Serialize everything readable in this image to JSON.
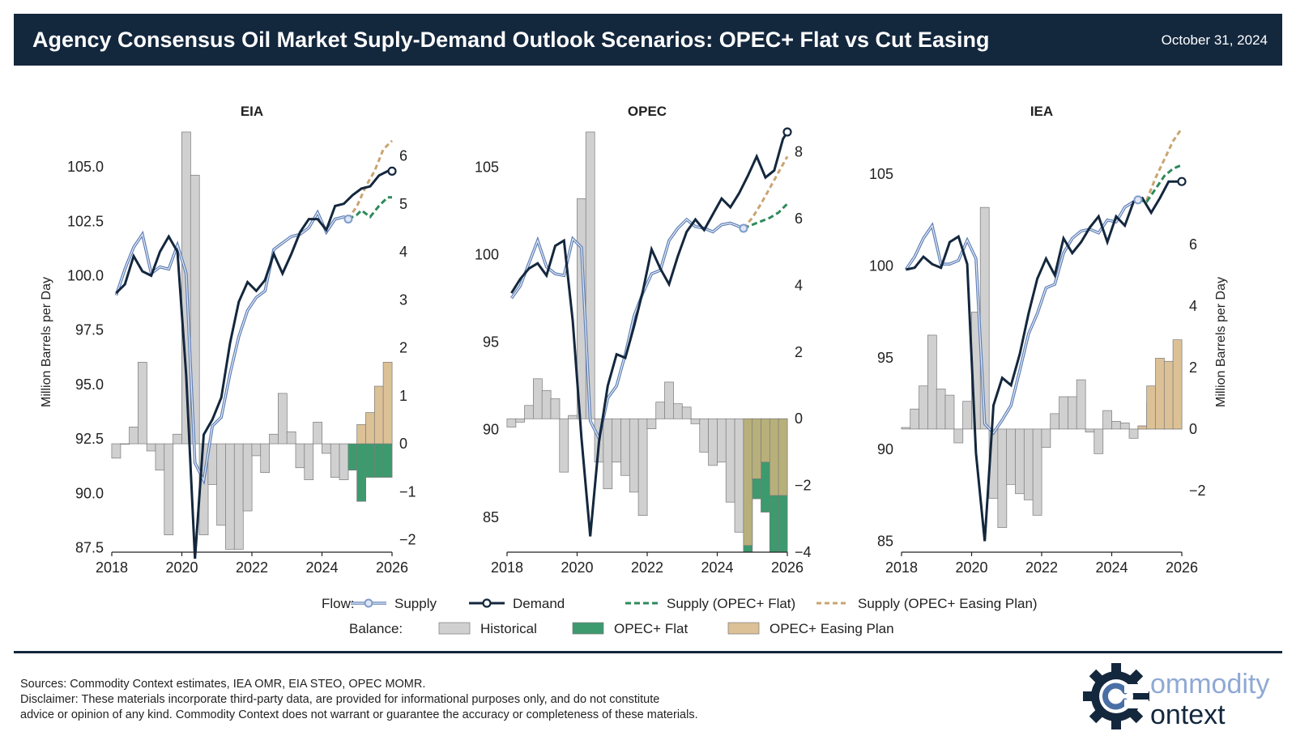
{
  "header": {
    "title": "Agency Consensus Oil Market Suply-Demand Outlook Scenarios: OPEC+ Flat vs Cut Easing",
    "date": "October 31, 2024"
  },
  "colors": {
    "header_bg": "#13273d",
    "supply": "#8fa9d4",
    "demand": "#13273d",
    "supply_flat": "#2e8a5c",
    "supply_easing": "#c9a472",
    "historical": "#d0d0d0",
    "opec_flat": "#3d9a6e",
    "opec_easing": "#dcc196"
  },
  "legend": {
    "flow_label": "Flow:",
    "balance_label": "Balance:",
    "supply": "Supply",
    "demand": "Demand",
    "supply_flat": "Supply (OPEC+ Flat)",
    "supply_easing": "Supply (OPEC+ Easing Plan)",
    "historical": "Historical",
    "opec_flat": "OPEC+ Flat",
    "opec_easing": "OPEC+ Easing Plan"
  },
  "footer": {
    "sources": "Sources: Commodity Context estimates, IEA OMR, EIA STEO, OPEC MOMR.",
    "disclaimer_1": "Disclaimer: These materials incorporate third-party data, are provided for informational purposes only, and do not constitute",
    "disclaimer_2": "advice or opinion of any kind. Commodity Context does not warrant or guarantee the accuracy or completeness of these materials."
  },
  "logo": {
    "line1": "ommodity",
    "line2": "ontext",
    "icon": "gear-c-icon"
  },
  "chart_data": [
    {
      "type": "line",
      "title": "EIA",
      "ylabel": "Million Barrels per Day",
      "ylabel_side": "left",
      "x_ticks": [
        "2018",
        "2020",
        "2022",
        "2024",
        "2026"
      ],
      "xlim": [
        2018,
        2026
      ],
      "left_ylim": [
        87.3,
        106.6
      ],
      "left_ticks": [
        "87.5",
        "90.0",
        "92.5",
        "95.0",
        "97.5",
        "100.0",
        "102.5",
        "105.0"
      ],
      "right_ylim": [
        -2.26,
        6.5
      ],
      "right_ticks": [
        "−2",
        "−1",
        "0",
        "1",
        "2",
        "3",
        "4",
        "5",
        "6"
      ],
      "supply": {
        "x": [
          2018.125,
          2018.375,
          2018.625,
          2018.875,
          2019.125,
          2019.375,
          2019.625,
          2019.875,
          2020.125,
          2020.375,
          2020.625,
          2020.875,
          2021.125,
          2021.375,
          2021.625,
          2021.875,
          2022.125,
          2022.375,
          2022.625,
          2022.875,
          2023.125,
          2023.375,
          2023.625,
          2023.875,
          2024.125,
          2024.375,
          2024.625,
          2024.75
        ],
        "y": [
          99.1,
          100.3,
          101.3,
          101.9,
          100.1,
          100.4,
          100.3,
          101.4,
          100.1,
          91.4,
          90.6,
          93.1,
          93.5,
          95.5,
          97.2,
          98.4,
          99.0,
          99.3,
          101.2,
          101.5,
          101.8,
          101.9,
          102.2,
          102.9,
          102.0,
          102.6,
          102.7,
          102.6
        ]
      },
      "demand": {
        "x": [
          2018.125,
          2018.375,
          2018.625,
          2018.875,
          2019.125,
          2019.375,
          2019.625,
          2019.875,
          2020.125,
          2020.375,
          2020.625,
          2020.875,
          2021.125,
          2021.375,
          2021.625,
          2021.875,
          2022.125,
          2022.375,
          2022.625,
          2022.875,
          2023.125,
          2023.375,
          2023.625,
          2023.875,
          2024.125,
          2024.375,
          2024.625,
          2024.875,
          2025.125,
          2025.375,
          2025.625,
          2025.875,
          2026.0
        ],
        "y": [
          99.2,
          99.6,
          100.9,
          100.2,
          100.0,
          101.1,
          101.8,
          101.1,
          95.4,
          87.0,
          92.7,
          93.4,
          94.4,
          96.9,
          98.8,
          99.7,
          99.3,
          99.8,
          101.0,
          100.1,
          101.0,
          102.0,
          102.6,
          102.6,
          102.1,
          103.2,
          103.3,
          103.7,
          104.0,
          104.1,
          104.6,
          104.8,
          104.8
        ]
      },
      "supply_flat": {
        "x": [
          2024.75,
          2025.0,
          2025.125,
          2025.375,
          2025.625,
          2025.875,
          2026.0
        ],
        "y": [
          102.6,
          102.8,
          103.0,
          102.7,
          103.2,
          103.6,
          103.6
        ]
      },
      "supply_easing": {
        "x": [
          2024.75,
          2025.0,
          2025.25,
          2025.5,
          2025.75,
          2026.0
        ],
        "y": [
          102.6,
          103.2,
          104.1,
          104.8,
          105.8,
          106.2
        ]
      },
      "bars_historical": {
        "x": [
          2018.125,
          2018.375,
          2018.625,
          2018.875,
          2019.125,
          2019.375,
          2019.625,
          2019.875,
          2020.125,
          2020.375,
          2020.625,
          2020.875,
          2021.125,
          2021.375,
          2021.625,
          2021.875,
          2022.125,
          2022.375,
          2022.625,
          2022.875,
          2023.125,
          2023.375,
          2023.625,
          2023.875,
          2024.125,
          2024.375,
          2024.625
        ],
        "y": [
          -0.3,
          0.0,
          0.35,
          1.7,
          -0.15,
          -0.55,
          -1.9,
          0.2,
          6.5,
          5.6,
          -1.9,
          -0.85,
          -1.7,
          -2.2,
          -2.2,
          -1.4,
          -0.25,
          -0.6,
          0.2,
          1.05,
          0.25,
          -0.5,
          -0.75,
          0.45,
          -0.2,
          -0.7,
          -0.75
        ]
      },
      "bars_flat": {
        "x": [
          2024.875,
          2025.125,
          2025.375,
          2025.625,
          2025.875
        ],
        "y": [
          -0.55,
          -1.2,
          -0.7,
          -0.7,
          -0.7
        ]
      },
      "bars_easing": {
        "x": [
          2025.125,
          2025.375,
          2025.625,
          2025.875
        ],
        "y": [
          0.4,
          0.65,
          1.2,
          1.7
        ]
      }
    },
    {
      "type": "line",
      "title": "OPEC",
      "x_ticks": [
        "2018",
        "2020",
        "2022",
        "2024",
        "2026"
      ],
      "xlim": [
        2018,
        2026
      ],
      "left_ylim": [
        83.0,
        107.0
      ],
      "left_ticks": [
        "85",
        "90",
        "95",
        "100",
        "105"
      ],
      "right_ylim": [
        -4.0,
        8.6
      ],
      "right_ticks": [
        "−4",
        "−2",
        "0",
        "2",
        "4",
        "6",
        "8"
      ],
      "supply": {
        "x": [
          2018.125,
          2018.375,
          2018.625,
          2018.875,
          2019.125,
          2019.375,
          2019.625,
          2019.875,
          2020.125,
          2020.375,
          2020.625,
          2020.875,
          2021.125,
          2021.375,
          2021.625,
          2021.875,
          2022.125,
          2022.375,
          2022.625,
          2022.875,
          2023.125,
          2023.375,
          2023.625,
          2023.875,
          2024.125,
          2024.375,
          2024.625,
          2024.75
        ],
        "y": [
          97.5,
          98.2,
          99.5,
          100.8,
          99.3,
          98.9,
          98.8,
          100.9,
          100.4,
          90.5,
          89.5,
          91.8,
          92.5,
          94.3,
          96.5,
          97.8,
          98.9,
          99.1,
          100.8,
          101.5,
          102.0,
          101.6,
          101.5,
          101.3,
          101.7,
          101.8,
          101.6,
          101.5
        ]
      },
      "demand": {
        "x": [
          2018.125,
          2018.375,
          2018.625,
          2018.875,
          2019.125,
          2019.375,
          2019.625,
          2019.875,
          2020.125,
          2020.375,
          2020.625,
          2020.875,
          2021.125,
          2021.375,
          2021.625,
          2021.875,
          2022.125,
          2022.375,
          2022.625,
          2022.875,
          2023.125,
          2023.375,
          2023.625,
          2023.875,
          2024.125,
          2024.375,
          2024.625,
          2024.875,
          2025.125,
          2025.375,
          2025.625,
          2025.875,
          2026.0
        ],
        "y": [
          97.8,
          98.6,
          99.2,
          99.5,
          98.8,
          100.5,
          100.8,
          96.2,
          89.5,
          83.9,
          89.3,
          92.5,
          94.3,
          94.1,
          95.9,
          97.9,
          100.3,
          99.2,
          98.3,
          99.9,
          101.3,
          102.0,
          101.4,
          102.3,
          103.2,
          102.7,
          103.5,
          104.5,
          105.6,
          104.4,
          104.8,
          106.6,
          107.0
        ]
      },
      "supply_flat": {
        "x": [
          2024.75,
          2025.0,
          2025.25,
          2025.5,
          2025.75,
          2026.0
        ],
        "y": [
          101.5,
          101.7,
          101.9,
          102.1,
          102.4,
          102.9
        ]
      },
      "supply_easing": {
        "x": [
          2024.75,
          2025.0,
          2025.25,
          2025.5,
          2025.75,
          2026.0
        ],
        "y": [
          101.5,
          102.1,
          102.9,
          103.8,
          104.7,
          105.6
        ]
      },
      "bars_historical": {
        "x": [
          2018.125,
          2018.375,
          2018.625,
          2018.875,
          2019.125,
          2019.375,
          2019.625,
          2019.875,
          2020.125,
          2020.375,
          2020.625,
          2020.875,
          2021.125,
          2021.375,
          2021.625,
          2021.875,
          2022.125,
          2022.375,
          2022.625,
          2022.875,
          2023.125,
          2023.375,
          2023.625,
          2023.875,
          2024.125,
          2024.375,
          2024.625
        ],
        "y": [
          -0.25,
          -0.1,
          0.4,
          1.2,
          0.85,
          0.6,
          -1.6,
          0.1,
          6.6,
          8.6,
          -1.3,
          -2.1,
          -1.3,
          -1.7,
          -2.2,
          -2.9,
          -0.3,
          0.5,
          1.1,
          0.45,
          0.35,
          -0.15,
          -1.0,
          -1.4,
          -1.3,
          -2.5,
          -3.4
        ]
      },
      "bars_flat": {
        "x": [
          2024.875,
          2025.125,
          2025.375,
          2025.625,
          2025.875
        ],
        "y": [
          -4.0,
          -2.4,
          -2.8,
          -4.0,
          -4.0
        ]
      },
      "bars_easing": {
        "x": [
          2024.875,
          2025.125,
          2025.375,
          2025.625,
          2025.875
        ],
        "y": [
          -3.8,
          -1.8,
          -1.3,
          -2.3,
          -2.3
        ]
      }
    },
    {
      "type": "line",
      "title": "IEA",
      "ylabel": "Million Barrels per Day",
      "ylabel_side": "right",
      "x_ticks": [
        "2018",
        "2020",
        "2022",
        "2024",
        "2026"
      ],
      "xlim": [
        2018,
        2026
      ],
      "left_ylim": [
        84.4,
        107.3
      ],
      "left_ticks": [
        "85",
        "90",
        "95",
        "100",
        "105"
      ],
      "right_ylim": [
        -4.0,
        9.65
      ],
      "right_ticks": [
        "−2",
        "0",
        "2",
        "4",
        "6"
      ],
      "supply": {
        "x": [
          2018.125,
          2018.375,
          2018.625,
          2018.875,
          2019.125,
          2019.375,
          2019.625,
          2019.875,
          2020.125,
          2020.375,
          2020.625,
          2020.875,
          2021.125,
          2021.375,
          2021.625,
          2021.875,
          2022.125,
          2022.375,
          2022.625,
          2022.875,
          2023.125,
          2023.375,
          2023.625,
          2023.875,
          2024.125,
          2024.375,
          2024.625,
          2024.75
        ],
        "y": [
          99.8,
          100.5,
          101.5,
          102.2,
          100.1,
          100.1,
          100.3,
          101.4,
          100.4,
          91.4,
          90.9,
          91.6,
          92.4,
          94.3,
          96.3,
          97.4,
          98.8,
          99.0,
          100.7,
          101.5,
          101.9,
          102.0,
          101.8,
          102.5,
          102.4,
          103.2,
          103.5,
          103.6
        ]
      },
      "demand": {
        "x": [
          2018.125,
          2018.375,
          2018.625,
          2018.875,
          2019.125,
          2019.375,
          2019.625,
          2019.875,
          2020.125,
          2020.375,
          2020.625,
          2020.875,
          2021.125,
          2021.375,
          2021.625,
          2021.875,
          2022.125,
          2022.375,
          2022.625,
          2022.875,
          2023.125,
          2023.375,
          2023.625,
          2023.875,
          2024.125,
          2024.375,
          2024.625,
          2024.875,
          2025.125,
          2025.375,
          2025.625,
          2025.875,
          2026.0
        ],
        "y": [
          99.8,
          99.9,
          100.5,
          100.1,
          99.9,
          101.3,
          101.6,
          100.1,
          89.8,
          85.0,
          92.4,
          93.9,
          93.5,
          95.2,
          97.4,
          99.3,
          100.4,
          99.5,
          101.5,
          100.7,
          101.3,
          102.1,
          102.7,
          101.3,
          102.7,
          102.2,
          103.5,
          103.7,
          102.9,
          103.7,
          104.6,
          104.6,
          104.6
        ]
      },
      "supply_flat": {
        "x": [
          2024.75,
          2025.0,
          2025.25,
          2025.5,
          2025.75,
          2026.0
        ],
        "y": [
          103.6,
          103.5,
          104.2,
          104.9,
          105.3,
          105.5
        ]
      },
      "supply_easing": {
        "x": [
          2024.75,
          2025.0,
          2025.25,
          2025.5,
          2025.75,
          2026.0
        ],
        "y": [
          103.6,
          103.6,
          104.8,
          105.8,
          106.8,
          107.5
        ]
      },
      "bars_historical": {
        "x": [
          2018.125,
          2018.375,
          2018.625,
          2018.875,
          2019.125,
          2019.375,
          2019.625,
          2019.875,
          2020.125,
          2020.375,
          2020.625,
          2020.875,
          2021.125,
          2021.375,
          2021.625,
          2021.875,
          2022.125,
          2022.375,
          2022.625,
          2022.875,
          2023.125,
          2023.375,
          2023.625,
          2023.875,
          2024.125,
          2024.375,
          2024.625
        ],
        "y": [
          0.05,
          0.65,
          1.4,
          3.05,
          1.3,
          1.1,
          -0.45,
          0.9,
          3.8,
          7.2,
          -2.25,
          -3.2,
          -1.8,
          -2.1,
          -2.3,
          -2.8,
          -0.6,
          0.5,
          1.05,
          1.05,
          1.6,
          -0.1,
          -0.8,
          0.6,
          0.25,
          0.2,
          -0.3
        ]
      },
      "bars_flat": {
        "x": [
          2024.875,
          2025.125,
          2025.375,
          2025.625,
          2025.875
        ],
        "y": [
          0.1,
          0.85,
          1.05,
          0.4,
          0.48
        ]
      },
      "bars_easing": {
        "x": [
          2024.875,
          2025.125,
          2025.375,
          2025.625,
          2025.875
        ],
        "y": [
          0.1,
          1.4,
          2.3,
          2.2,
          2.9
        ]
      }
    }
  ]
}
